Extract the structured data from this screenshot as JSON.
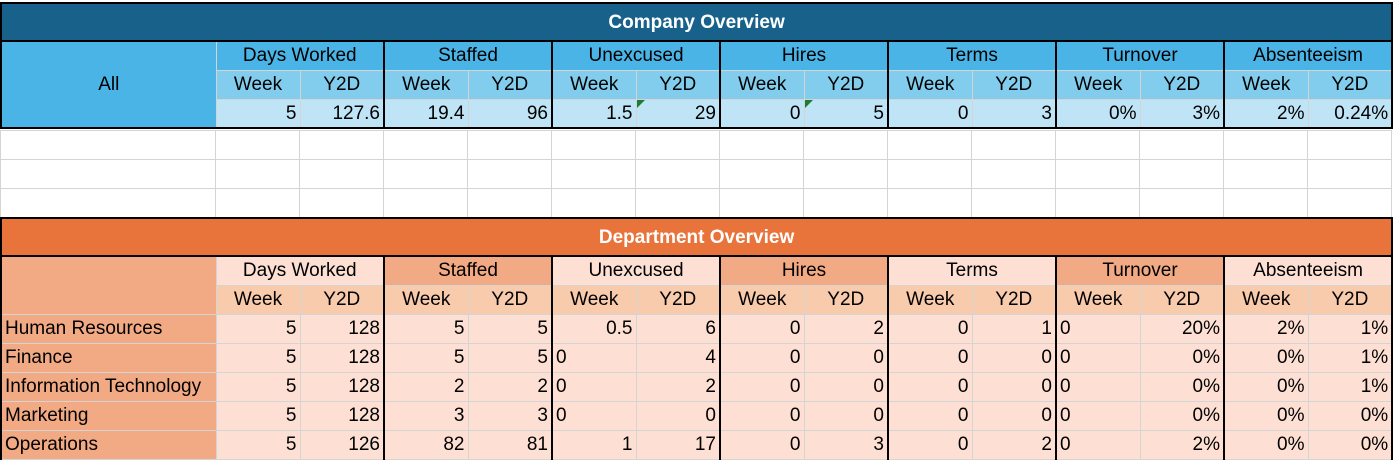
{
  "company": {
    "title": "Company Overview",
    "scope_label": "All",
    "groups": [
      "Days Worked",
      "Staffed",
      "Unexcused",
      "Hires",
      "Terms",
      "Turnover",
      "Absenteeism"
    ],
    "sub_labels": [
      "Week",
      "Y2D"
    ],
    "values": [
      "5",
      "127.6",
      "19.4",
      "96",
      "1.5",
      "29",
      "0",
      "5",
      "0",
      "3",
      "0%",
      "3%",
      "2%",
      "0.24%"
    ]
  },
  "department": {
    "title": "Department Overview",
    "groups": [
      "Days Worked",
      "Staffed",
      "Unexcused",
      "Hires",
      "Terms",
      "Turnover",
      "Absenteeism"
    ],
    "sub_labels": [
      "Week",
      "Y2D"
    ],
    "rows": [
      {
        "name": "Human Resources",
        "values": [
          "5",
          "128",
          "5",
          "5",
          "0.5",
          "6",
          "0",
          "2",
          "0",
          "1",
          "0",
          "20%",
          "2%",
          "1%"
        ]
      },
      {
        "name": "Finance",
        "values": [
          "5",
          "128",
          "5",
          "5",
          "0",
          "4",
          "0",
          "0",
          "0",
          "0",
          "0",
          "0%",
          "0%",
          "1%"
        ]
      },
      {
        "name": "Information Technology",
        "values": [
          "5",
          "128",
          "2",
          "2",
          "0",
          "2",
          "0",
          "0",
          "0",
          "0",
          "0",
          "0%",
          "0%",
          "1%"
        ]
      },
      {
        "name": "Marketing",
        "values": [
          "5",
          "128",
          "3",
          "3",
          "0",
          "0",
          "0",
          "0",
          "0",
          "0",
          "0",
          "0%",
          "0%",
          "0%"
        ]
      },
      {
        "name": "Operations",
        "values": [
          "5",
          "126",
          "82",
          "81",
          "1",
          "17",
          "0",
          "3",
          "0",
          "2",
          "0",
          "2%",
          "0%",
          "0%"
        ]
      }
    ]
  },
  "colors": {
    "company_title_bg": "#17618a",
    "company_group_bg": "#4bb4e6",
    "company_sub_bg": "#82cdee",
    "company_value_bg": "#bfe4f6",
    "dept_title_bg": "#e8743b",
    "dept_label_bg": "#f2aa84",
    "dept_sub_bg": "#f8cbad",
    "dept_value_bg": "#fde0d3"
  }
}
